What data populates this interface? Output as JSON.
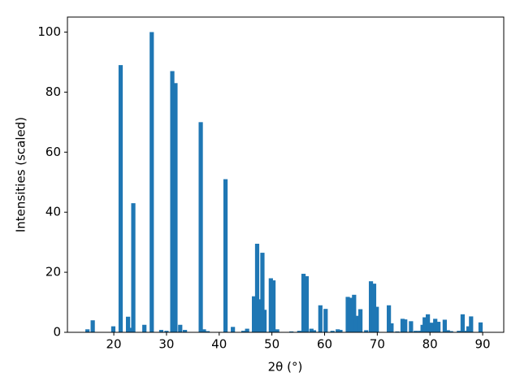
{
  "chart_data": {
    "type": "bar",
    "xlabel": "2θ (°)",
    "ylabel": "Intensities (scaled)",
    "color": "#1f77b4",
    "x": [
      15.0,
      16.0,
      19.9,
      21.3,
      22.7,
      23.0,
      23.7,
      25.8,
      27.2,
      29.0,
      30.0,
      31.1,
      31.7,
      32.6,
      33.5,
      36.5,
      37.1,
      37.8,
      41.2,
      42.6,
      44.6,
      45.3,
      46.6,
      47.2,
      47.7,
      48.2,
      48.6,
      49.8,
      50.3,
      51.0,
      53.7,
      55.2,
      56.0,
      56.6,
      57.5,
      58.0,
      59.2,
      60.2,
      61.5,
      62.5,
      63.0,
      64.4,
      65.0,
      65.6,
      66.0,
      66.8,
      67.9,
      68.8,
      69.4,
      69.9,
      72.2,
      72.7,
      73.8,
      74.8,
      75.3,
      76.4,
      77.3,
      78.1,
      78.6,
      79.0,
      79.6,
      80.3,
      81.0,
      81.6,
      82.8,
      83.4,
      84.0,
      85.5,
      86.2,
      86.8,
      87.3,
      87.8,
      89.6
    ],
    "values": [
      1,
      4,
      2,
      89,
      5.2,
      1.5,
      43,
      2.5,
      100,
      0.8,
      0.5,
      87,
      83,
      2.5,
      0.8,
      70,
      1,
      0.4,
      51,
      1.8,
      0.5,
      1.2,
      12,
      29.5,
      11,
      26.5,
      7.5,
      18,
      17.3,
      1,
      0.3,
      0.5,
      19.5,
      18.7,
      1.2,
      0.7,
      9,
      7.8,
      0.5,
      1,
      0.8,
      11.8,
      11.5,
      12.5,
      5.5,
      7.7,
      0.7,
      17,
      16.2,
      8.5,
      9,
      3,
      0.3,
      4.5,
      4.3,
      3.7,
      0.5,
      0.5,
      2.5,
      5,
      6,
      3.2,
      4.5,
      3.5,
      4.2,
      0.7,
      0.4,
      0.5,
      6,
      0.5,
      2,
      5.3,
      3.3
    ],
    "xlim": [
      11.2,
      94.0
    ],
    "ylim": [
      0,
      105
    ],
    "xticks": [
      20,
      30,
      40,
      50,
      60,
      70,
      80,
      90
    ],
    "yticks": [
      0,
      20,
      40,
      60,
      80,
      100
    ]
  }
}
